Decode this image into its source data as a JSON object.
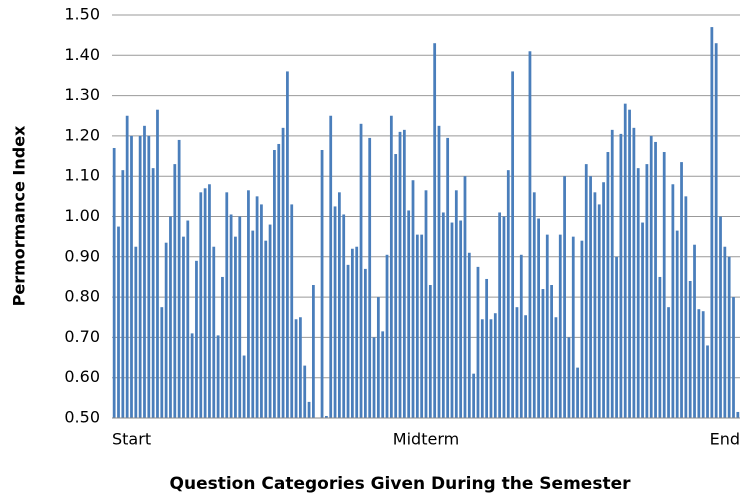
{
  "chart_data": {
    "type": "bar",
    "x_label": "Question Categories Given During the Semester",
    "y_label": "Permormance Index",
    "categories": [
      "Start",
      null,
      null,
      null,
      null,
      null,
      null,
      null,
      null,
      null,
      null,
      null,
      null,
      null,
      null,
      null,
      null,
      null,
      null,
      null,
      null,
      null,
      null,
      null,
      null,
      null,
      null,
      null,
      null,
      null,
      null,
      null,
      null,
      null,
      null,
      null,
      null,
      null,
      null,
      null,
      null,
      null,
      null,
      null,
      null,
      null,
      null,
      null,
      null,
      null,
      null,
      null,
      null,
      null,
      null,
      null,
      null,
      null,
      null,
      null,
      null,
      null,
      null,
      null,
      null,
      null,
      null,
      null,
      null,
      null,
      null,
      null,
      "Midterm",
      null,
      null,
      null,
      null,
      null,
      null,
      null,
      null,
      null,
      null,
      null,
      null,
      null,
      null,
      null,
      null,
      null,
      null,
      null,
      null,
      null,
      null,
      null,
      null,
      null,
      null,
      null,
      null,
      null,
      null,
      null,
      null,
      null,
      null,
      null,
      null,
      null,
      null,
      null,
      null,
      null,
      null,
      null,
      null,
      null,
      null,
      null,
      null,
      null,
      null,
      null,
      null,
      null,
      null,
      null,
      null,
      null,
      null,
      null,
      null,
      null,
      null,
      null,
      null,
      null,
      null,
      null,
      null,
      null,
      null,
      null,
      "End"
    ],
    "values": [
      1.17,
      0.975,
      1.115,
      1.25,
      1.2,
      0.925,
      1.2,
      1.225,
      1.2,
      1.12,
      1.265,
      0.775,
      0.935,
      1.0,
      1.13,
      1.19,
      0.95,
      0.99,
      0.71,
      0.89,
      1.06,
      1.07,
      1.08,
      0.925,
      0.705,
      0.85,
      1.06,
      1.005,
      0.95,
      1.0,
      0.655,
      1.065,
      0.965,
      1.05,
      1.03,
      0.94,
      0.98,
      1.165,
      1.18,
      1.22,
      1.36,
      1.03,
      0.745,
      0.75,
      0.63,
      0.54,
      0.83,
      0.5,
      1.165,
      0.505,
      1.25,
      1.025,
      1.06,
      1.005,
      0.88,
      0.92,
      0.925,
      1.23,
      0.87,
      1.195,
      0.7,
      0.8,
      0.715,
      0.905,
      1.25,
      1.155,
      1.21,
      1.215,
      1.015,
      1.09,
      0.955,
      0.955,
      1.065,
      0.83,
      1.43,
      1.225,
      1.01,
      1.195,
      0.985,
      1.065,
      0.99,
      1.1,
      0.91,
      0.61,
      0.875,
      0.745,
      0.845,
      0.745,
      0.76,
      1.01,
      1.0,
      1.115,
      1.36,
      0.775,
      0.905,
      0.755,
      1.41,
      1.06,
      0.995,
      0.82,
      0.955,
      0.83,
      0.75,
      0.955,
      1.1,
      0.7,
      0.95,
      0.625,
      0.94,
      1.13,
      1.1,
      1.06,
      1.03,
      1.085,
      1.16,
      1.215,
      0.9,
      1.205,
      1.28,
      1.265,
      1.22,
      1.12,
      0.985,
      1.13,
      1.2,
      1.185,
      0.85,
      1.16,
      0.775,
      1.08,
      0.965,
      1.135,
      1.05,
      0.84,
      0.93,
      0.77,
      0.765,
      0.68,
      1.47,
      1.43,
      1.0,
      0.925,
      0.9,
      0.8,
      0.515
    ],
    "color": "#4a7ebb",
    "ylim": [
      0.5,
      1.5
    ],
    "yticks": [
      {
        "value": 0.5,
        "label": "0.50"
      },
      {
        "value": 0.6,
        "label": "0.60"
      },
      {
        "value": 0.7,
        "label": "0.70"
      },
      {
        "value": 0.8,
        "label": "0.80"
      },
      {
        "value": 0.9,
        "label": "0.90"
      },
      {
        "value": 1.0,
        "label": "1.00"
      },
      {
        "value": 1.1,
        "label": "1.10"
      },
      {
        "value": 1.2,
        "label": "1.20"
      },
      {
        "value": 1.3,
        "label": "1.30"
      },
      {
        "value": 1.4,
        "label": "1.40"
      },
      {
        "value": 1.5,
        "label": "1.50"
      }
    ],
    "grid": true
  }
}
